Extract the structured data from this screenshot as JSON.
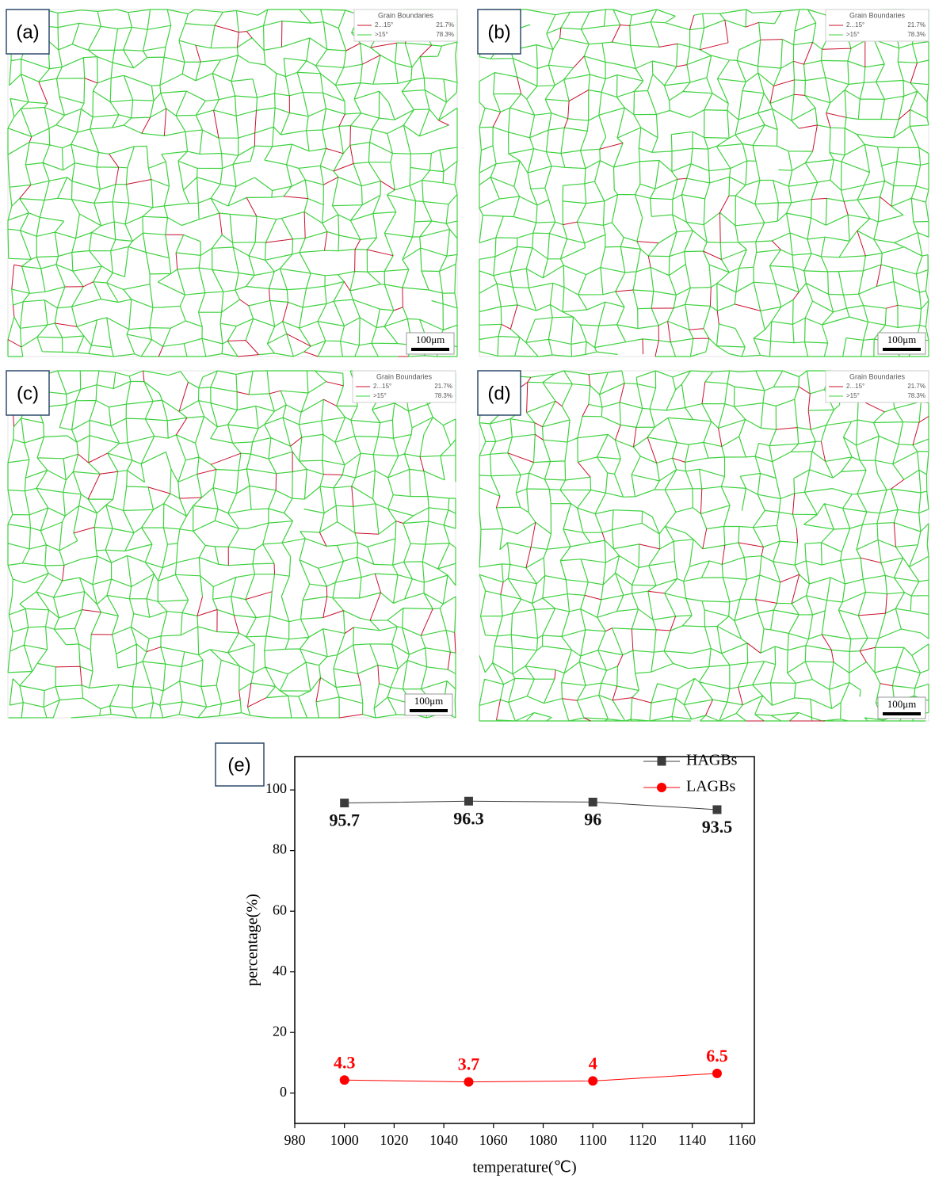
{
  "panels": [
    {
      "label": "(a)",
      "legend": {
        "title": "Grain Boundaries",
        "rows": [
          [
            "2...15°",
            "21.7%"
          ],
          [
            ">15°",
            "78.3%"
          ]
        ]
      },
      "scale_bar": "100μm"
    },
    {
      "label": "(b)",
      "legend": {
        "title": "Grain Boundaries",
        "rows": [
          [
            "2...15°",
            "21.7%"
          ],
          [
            ">15°",
            "78.3%"
          ]
        ]
      },
      "scale_bar": "100μm"
    },
    {
      "label": "(c)",
      "legend": {
        "title": "Grain Boundaries",
        "rows": [
          [
            "2...15°",
            "21.7%"
          ],
          [
            ">15°",
            "78.3%"
          ]
        ]
      },
      "scale_bar": "100μm"
    },
    {
      "label": "(d)",
      "legend": {
        "title": "Grain Boundaries",
        "rows": [
          [
            "2...15°",
            "21.7%"
          ],
          [
            ">15°",
            "78.3%"
          ]
        ]
      },
      "scale_bar": "100μm"
    }
  ],
  "chart_data": {
    "type": "line",
    "panel_label": "(e)",
    "x_label": "temperature(℃)",
    "y_label": "percentage(%)",
    "x": [
      1000,
      1050,
      1100,
      1150
    ],
    "xlim": [
      980,
      1165
    ],
    "xticks": [
      980,
      1000,
      1020,
      1040,
      1060,
      1080,
      1100,
      1120,
      1140,
      1160
    ],
    "ylim": [
      -10,
      111
    ],
    "yticks": [
      0,
      20,
      40,
      60,
      80,
      100
    ],
    "legend": "upper right",
    "data_labels": true,
    "series": [
      {
        "name": "HAGBs",
        "color": "#3c3c3c",
        "marker": "square",
        "values": [
          95.7,
          96.3,
          96,
          93.5
        ]
      },
      {
        "name": "LAGBs",
        "color": "#ff0000",
        "marker": "circle",
        "values": [
          4.3,
          3.7,
          4,
          6.5
        ]
      }
    ]
  }
}
